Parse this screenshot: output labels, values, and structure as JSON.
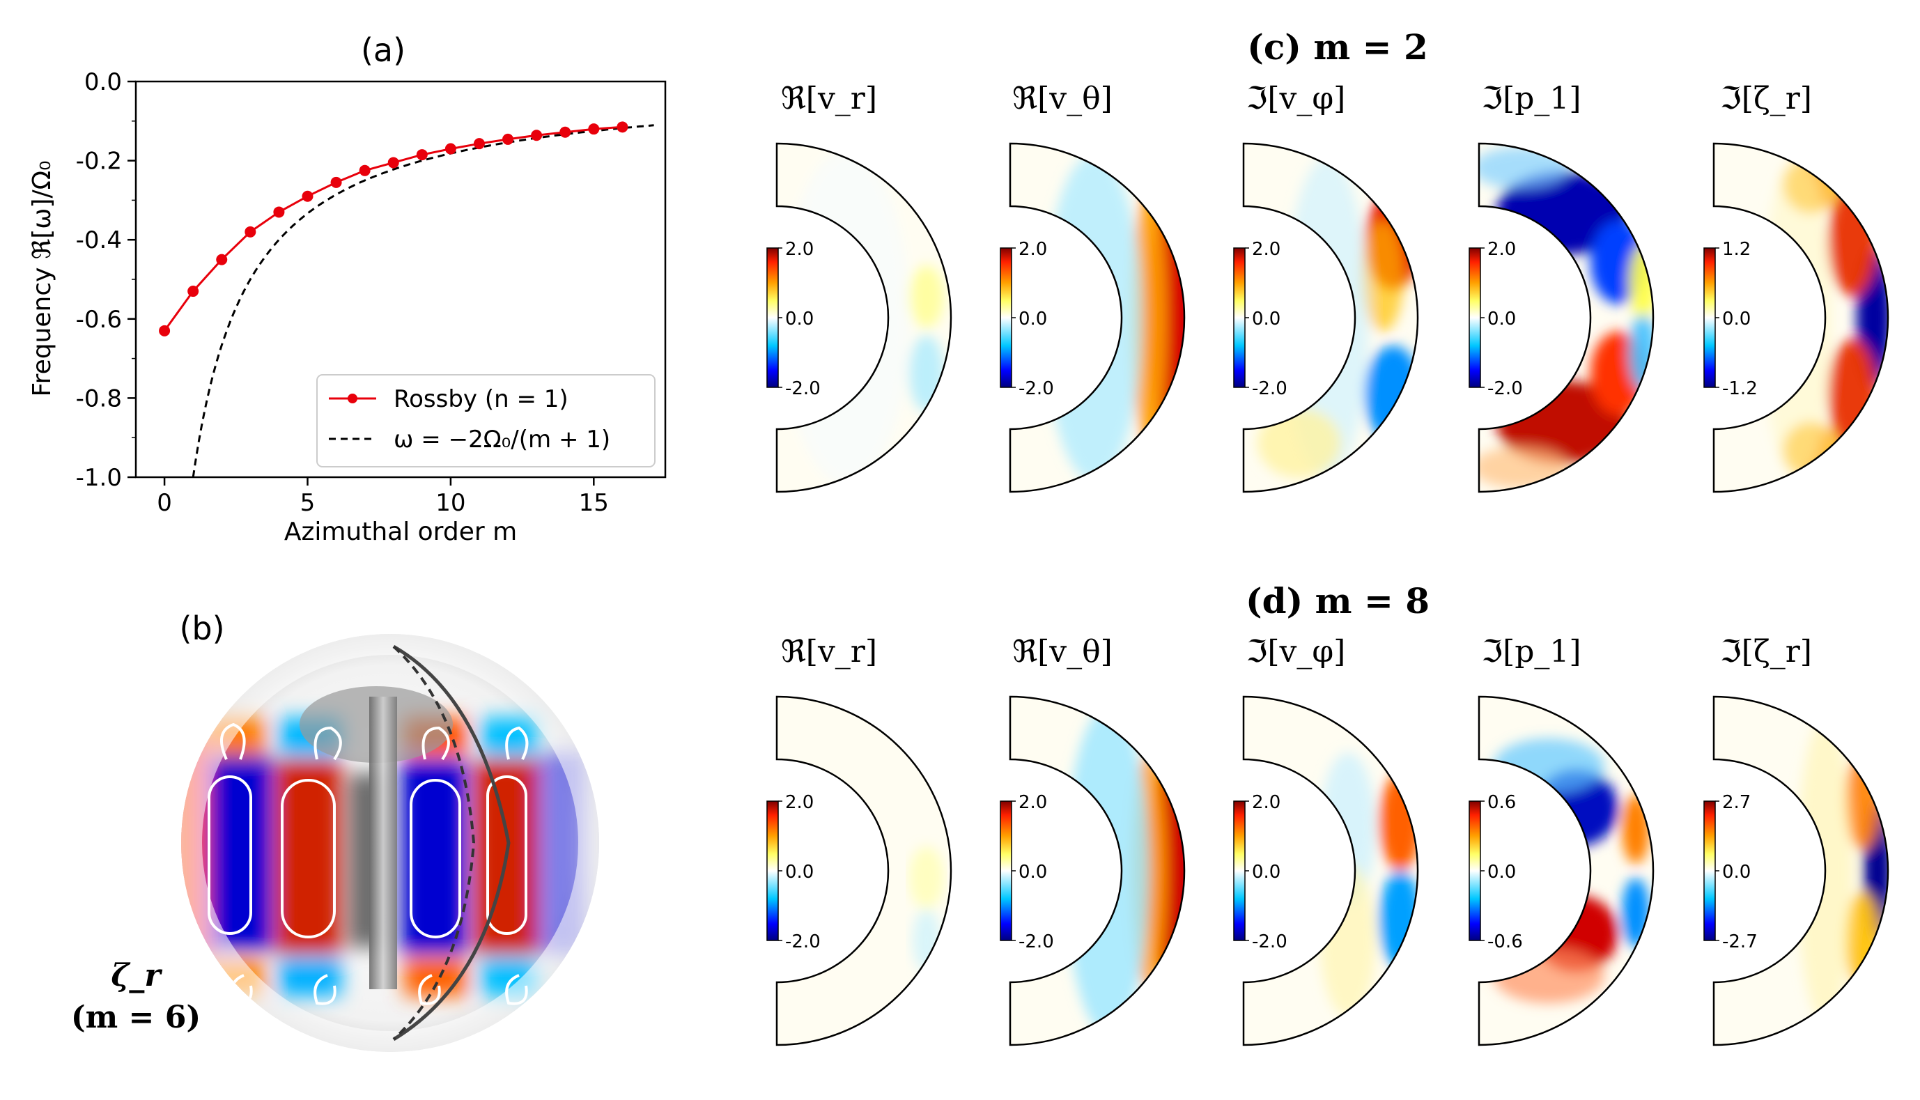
{
  "panel_a": {
    "title": "(a)",
    "legend": {
      "series_label": "Rossby (n = 1)",
      "curve_label": "ω = −2Ω₀/(m + 1)",
      "placement": "lower-right"
    }
  },
  "panel_b": {
    "label": "(b)",
    "field": "ζ_r",
    "mode": "(m = 6)"
  },
  "panel_c": {
    "title": "(c) m = 2"
  },
  "panel_d": {
    "title": "(d) m = 8"
  },
  "field_titles": [
    "ℜ[v_r]",
    "ℜ[v_θ]",
    "ℑ[v_φ]",
    "ℑ[p_1]",
    "ℑ[ζ_r]"
  ],
  "colorbars_c": [
    {
      "max": "2.0",
      "mid": "0.0",
      "min": "-2.0"
    },
    {
      "max": "2.0",
      "mid": "0.0",
      "min": "-2.0"
    },
    {
      "max": "2.0",
      "mid": "0.0",
      "min": "-2.0"
    },
    {
      "max": "2.0",
      "mid": "0.0",
      "min": "-2.0"
    },
    {
      "max": "1.2",
      "mid": "0.0",
      "min": "-1.2"
    }
  ],
  "colorbars_d": [
    {
      "max": "2.0",
      "mid": "0.0",
      "min": "-2.0"
    },
    {
      "max": "2.0",
      "mid": "0.0",
      "min": "-2.0"
    },
    {
      "max": "2.0",
      "mid": "0.0",
      "min": "-2.0"
    },
    {
      "max": "0.6",
      "mid": "0.0",
      "min": "-0.6"
    },
    {
      "max": "2.7",
      "mid": "0.0",
      "min": "-2.7"
    }
  ],
  "colors": {
    "rossby": "#e8000b",
    "analytic": "#000000",
    "hot": "#b40000",
    "cold": "#0000b0"
  },
  "chart_data": {
    "type": "line",
    "title": "(a)",
    "xlabel": "Azimuthal order m",
    "ylabel": "Frequency ℜ[ω]/Ω₀",
    "xlim": [
      -1,
      17.5
    ],
    "ylim": [
      -1.0,
      0.0
    ],
    "xticks": [
      0,
      5,
      10,
      15
    ],
    "yticks": [
      "0.0",
      "-0.2",
      "-0.4",
      "-0.6",
      "-0.8",
      "-1.0"
    ],
    "grid": false,
    "series": [
      {
        "name": "Rossby (n = 1)",
        "x": [
          0,
          1,
          2,
          3,
          4,
          5,
          6,
          7,
          8,
          9,
          10,
          11,
          12,
          13,
          14,
          15,
          16
        ],
        "y": [
          -0.63,
          -0.53,
          -0.45,
          -0.38,
          -0.33,
          -0.29,
          -0.255,
          -0.225,
          -0.205,
          -0.185,
          -0.17,
          -0.157,
          -0.146,
          -0.136,
          -0.128,
          -0.12,
          -0.115
        ]
      },
      {
        "name": "ω = −2Ω₀/(m + 1)",
        "x": [
          1,
          2,
          3,
          4,
          5,
          6,
          7,
          8,
          9,
          10,
          11,
          12,
          13,
          14,
          15,
          16,
          17
        ],
        "y": [
          -1.0,
          -0.667,
          -0.5,
          -0.4,
          -0.333,
          -0.286,
          -0.25,
          -0.222,
          -0.2,
          -0.182,
          -0.167,
          -0.154,
          -0.143,
          -0.133,
          -0.125,
          -0.118,
          -0.111
        ]
      }
    ]
  }
}
